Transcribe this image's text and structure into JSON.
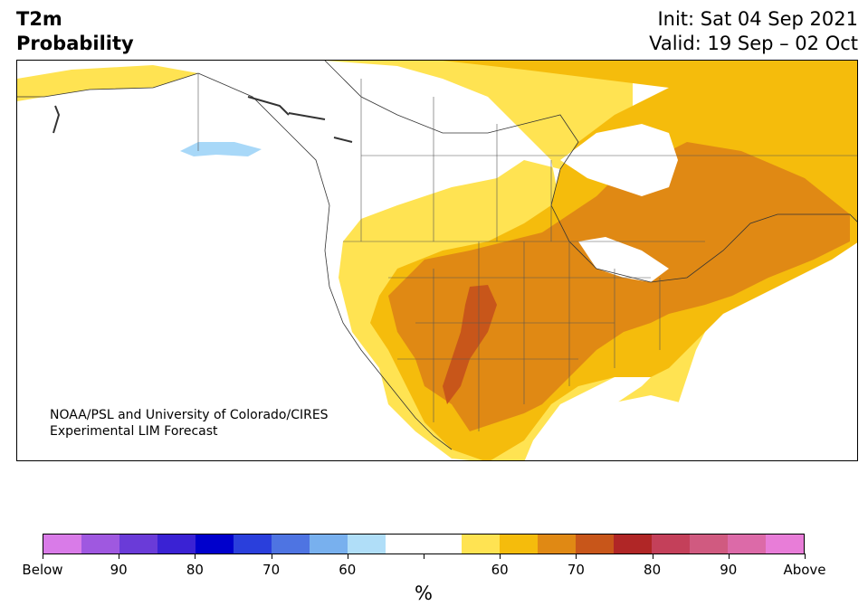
{
  "header": {
    "title_line1": "T2m",
    "title_line2": "Probability",
    "init": "Init: Sat 04 Sep 2021",
    "valid": "Valid: 19 Sep – 02 Oct"
  },
  "map": {
    "credit_line1": "NOAA/PSL and University of Colorado/CIRES",
    "credit_line2": "Experimental LIM Forecast"
  },
  "colorbar": {
    "colors": [
      "#d97be8",
      "#9f58e0",
      "#6a3bd8",
      "#3a22d4",
      "#0000cc",
      "#2a3fdc",
      "#4e74e2",
      "#78b0ee",
      "#b0def8",
      "#ffffff",
      "#ffffff",
      "#ffe352",
      "#f5bc0c",
      "#e08914",
      "#c8561a",
      "#b02626",
      "#c4405a",
      "#d05a80",
      "#dc6aa8",
      "#e87dd8"
    ],
    "labels": [
      "Below",
      "90",
      "80",
      "70",
      "60",
      "",
      "60",
      "70",
      "80",
      "90",
      "Above"
    ],
    "unit": "%"
  }
}
